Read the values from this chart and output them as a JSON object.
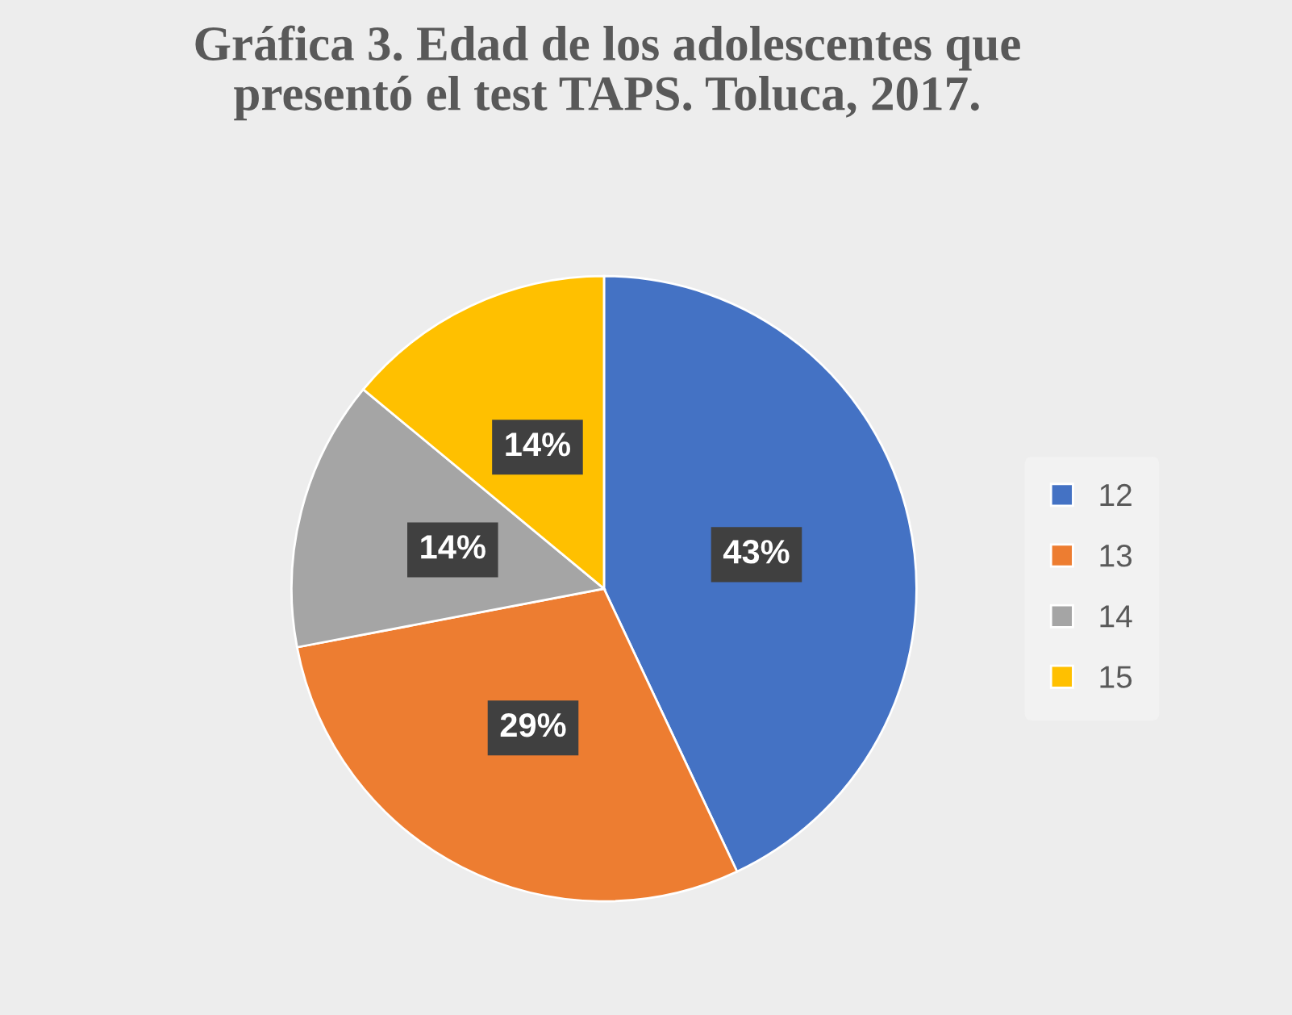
{
  "chart_data": {
    "type": "pie",
    "title": "Gráfica 3. Edad de los adolescentes que\npresentó el test TAPS. Toluca, 2017.",
    "categories": [
      "12",
      "13",
      "14",
      "15"
    ],
    "values": [
      43,
      29,
      14,
      14
    ],
    "value_labels": [
      "43%",
      "29%",
      "14%",
      "14%"
    ],
    "colors": [
      "#4472c4",
      "#ed7d31",
      "#a5a5a5",
      "#ffc000"
    ],
    "legend": "right"
  }
}
